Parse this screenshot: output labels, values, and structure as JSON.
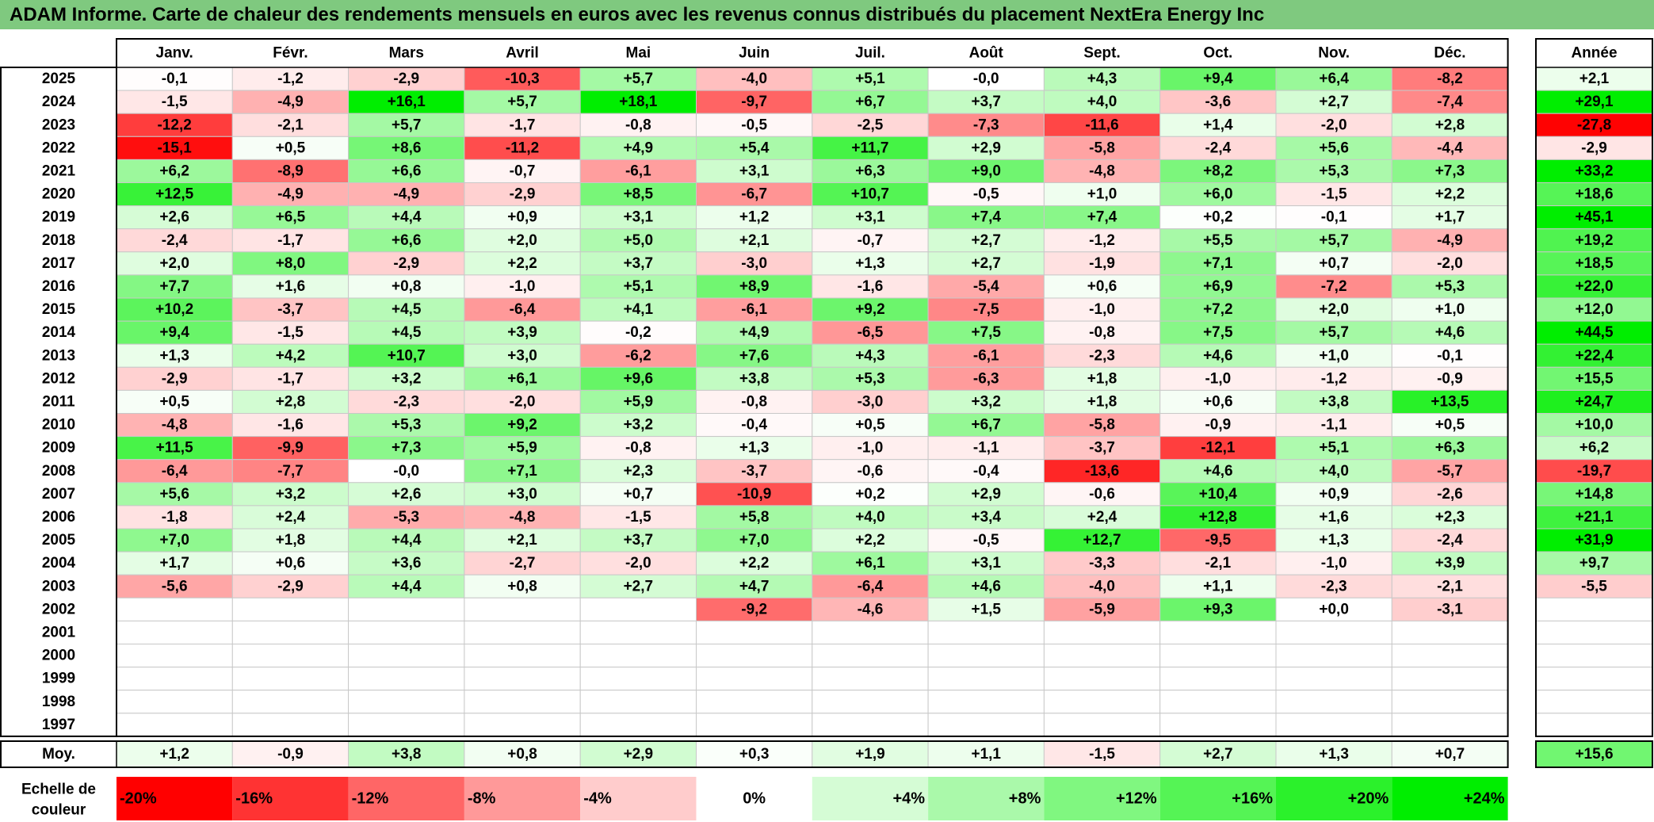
{
  "title": "ADAM Informe. Carte de chaleur des rendements mensuels en euros avec les revenus connus distribués du placement NextEra Energy Inc",
  "chart_data": {
    "type": "heatmap",
    "title": "ADAM Informe. Carte de chaleur des rendements mensuels en euros avec les revenus connus distribués du placement NextEra Energy Inc",
    "months": [
      "Janv.",
      "Févr.",
      "Mars",
      "Avril",
      "Mai",
      "Juin",
      "Juil.",
      "Août",
      "Sept.",
      "Oct.",
      "Nov.",
      "Déc."
    ],
    "year_header": "Année",
    "rows": [
      {
        "year": "2025",
        "values": [
          "-0,1",
          "-1,2",
          "-2,9",
          "-10,3",
          "+5,7",
          "-4,0",
          "+5,1",
          "-0,0",
          "+4,3",
          "+9,4",
          "+6,4",
          "-8,2"
        ],
        "annual": "+2,1"
      },
      {
        "year": "2024",
        "values": [
          "-1,5",
          "-4,9",
          "+16,1",
          "+5,7",
          "+18,1",
          "-9,7",
          "+6,7",
          "+3,7",
          "+4,0",
          "-3,6",
          "+2,7",
          "-7,4"
        ],
        "annual": "+29,1"
      },
      {
        "year": "2023",
        "values": [
          "-12,2",
          "-2,1",
          "+5,7",
          "-1,7",
          "-0,8",
          "-0,5",
          "-2,5",
          "-7,3",
          "-11,6",
          "+1,4",
          "-2,0",
          "+2,8"
        ],
        "annual": "-27,8"
      },
      {
        "year": "2022",
        "values": [
          "-15,1",
          "+0,5",
          "+8,6",
          "-11,2",
          "+4,9",
          "+5,4",
          "+11,7",
          "+2,9",
          "-5,8",
          "-2,4",
          "+5,6",
          "-4,4"
        ],
        "annual": "-2,9"
      },
      {
        "year": "2021",
        "values": [
          "+6,2",
          "-8,9",
          "+6,6",
          "-0,7",
          "-6,1",
          "+3,1",
          "+6,3",
          "+9,0",
          "-4,8",
          "+8,2",
          "+5,3",
          "+7,3"
        ],
        "annual": "+33,2"
      },
      {
        "year": "2020",
        "values": [
          "+12,5",
          "-4,9",
          "-4,9",
          "-2,9",
          "+8,5",
          "-6,7",
          "+10,7",
          "-0,5",
          "+1,0",
          "+6,0",
          "-1,5",
          "+2,2"
        ],
        "annual": "+18,6"
      },
      {
        "year": "2019",
        "values": [
          "+2,6",
          "+6,5",
          "+4,4",
          "+0,9",
          "+3,1",
          "+1,2",
          "+3,1",
          "+7,4",
          "+7,4",
          "+0,2",
          "-0,1",
          "+1,7"
        ],
        "annual": "+45,1"
      },
      {
        "year": "2018",
        "values": [
          "-2,4",
          "-1,7",
          "+6,6",
          "+2,0",
          "+5,0",
          "+2,1",
          "-0,7",
          "+2,7",
          "-1,2",
          "+5,5",
          "+5,7",
          "-4,9"
        ],
        "annual": "+19,2"
      },
      {
        "year": "2017",
        "values": [
          "+2,0",
          "+8,0",
          "-2,9",
          "+2,2",
          "+3,7",
          "-3,0",
          "+1,3",
          "+2,7",
          "-1,9",
          "+7,1",
          "+0,7",
          "-2,0"
        ],
        "annual": "+18,5"
      },
      {
        "year": "2016",
        "values": [
          "+7,7",
          "+1,6",
          "+0,8",
          "-1,0",
          "+5,1",
          "+8,9",
          "-1,6",
          "-5,4",
          "+0,6",
          "+6,9",
          "-7,2",
          "+5,3"
        ],
        "annual": "+22,0"
      },
      {
        "year": "2015",
        "values": [
          "+10,2",
          "-3,7",
          "+4,5",
          "-6,4",
          "+4,1",
          "-6,1",
          "+9,2",
          "-7,5",
          "-1,0",
          "+7,2",
          "+2,0",
          "+1,0"
        ],
        "annual": "+12,0"
      },
      {
        "year": "2014",
        "values": [
          "+9,4",
          "-1,5",
          "+4,5",
          "+3,9",
          "-0,2",
          "+4,9",
          "-6,5",
          "+7,5",
          "-0,8",
          "+7,5",
          "+5,7",
          "+4,6"
        ],
        "annual": "+44,5"
      },
      {
        "year": "2013",
        "values": [
          "+1,3",
          "+4,2",
          "+10,7",
          "+3,0",
          "-6,2",
          "+7,6",
          "+4,3",
          "-6,1",
          "-2,3",
          "+4,6",
          "+1,0",
          "-0,1"
        ],
        "annual": "+22,4"
      },
      {
        "year": "2012",
        "values": [
          "-2,9",
          "-1,7",
          "+3,2",
          "+6,1",
          "+9,6",
          "+3,8",
          "+5,3",
          "-6,3",
          "+1,8",
          "-1,0",
          "-1,2",
          "-0,9"
        ],
        "annual": "+15,5"
      },
      {
        "year": "2011",
        "values": [
          "+0,5",
          "+2,8",
          "-2,3",
          "-2,0",
          "+5,9",
          "-0,8",
          "-3,0",
          "+3,2",
          "+1,8",
          "+0,6",
          "+3,8",
          "+13,5"
        ],
        "annual": "+24,7"
      },
      {
        "year": "2010",
        "values": [
          "-4,8",
          "-1,6",
          "+5,3",
          "+9,2",
          "+3,2",
          "-0,4",
          "+0,5",
          "+6,7",
          "-5,8",
          "-0,9",
          "-1,1",
          "+0,5"
        ],
        "annual": "+10,0"
      },
      {
        "year": "2009",
        "values": [
          "+11,5",
          "-9,9",
          "+7,3",
          "+5,9",
          "-0,8",
          "+1,3",
          "-1,0",
          "-1,1",
          "-3,7",
          "-12,1",
          "+5,1",
          "+6,3"
        ],
        "annual": "+6,2"
      },
      {
        "year": "2008",
        "values": [
          "-6,4",
          "-7,7",
          "-0,0",
          "+7,1",
          "+2,3",
          "-3,7",
          "-0,6",
          "-0,4",
          "-13,6",
          "+4,6",
          "+4,0",
          "-5,7"
        ],
        "annual": "-19,7"
      },
      {
        "year": "2007",
        "values": [
          "+5,6",
          "+3,2",
          "+2,6",
          "+3,0",
          "+0,7",
          "-10,9",
          "+0,2",
          "+2,9",
          "-0,6",
          "+10,4",
          "+0,9",
          "-2,6"
        ],
        "annual": "+14,8"
      },
      {
        "year": "2006",
        "values": [
          "-1,8",
          "+2,4",
          "-5,3",
          "-4,8",
          "-1,5",
          "+5,8",
          "+4,0",
          "+3,4",
          "+2,4",
          "+12,8",
          "+1,6",
          "+2,3"
        ],
        "annual": "+21,1"
      },
      {
        "year": "2005",
        "values": [
          "+7,0",
          "+1,8",
          "+4,4",
          "+2,1",
          "+3,7",
          "+7,0",
          "+2,2",
          "-0,5",
          "+12,7",
          "-9,5",
          "+1,3",
          "-2,4"
        ],
        "annual": "+31,9"
      },
      {
        "year": "2004",
        "values": [
          "+1,7",
          "+0,6",
          "+3,6",
          "-2,7",
          "-2,0",
          "+2,2",
          "+6,1",
          "+3,1",
          "-3,3",
          "-2,1",
          "-1,0",
          "+3,9"
        ],
        "annual": "+9,7"
      },
      {
        "year": "2003",
        "values": [
          "-5,6",
          "-2,9",
          "+4,4",
          "+0,8",
          "+2,7",
          "+4,7",
          "-6,4",
          "+4,6",
          "-4,0",
          "+1,1",
          "-2,3",
          "-2,1"
        ],
        "annual": "-5,5"
      },
      {
        "year": "2002",
        "values": [
          "",
          "",
          "",
          "",
          "",
          "-9,2",
          "-4,6",
          "+1,5",
          "-5,9",
          "+9,3",
          "+0,0",
          "-3,1"
        ],
        "annual": ""
      },
      {
        "year": "2001",
        "values": [
          "",
          "",
          "",
          "",
          "",
          "",
          "",
          "",
          "",
          "",
          "",
          ""
        ],
        "annual": ""
      },
      {
        "year": "2000",
        "values": [
          "",
          "",
          "",
          "",
          "",
          "",
          "",
          "",
          "",
          "",
          "",
          ""
        ],
        "annual": ""
      },
      {
        "year": "1999",
        "values": [
          "",
          "",
          "",
          "",
          "",
          "",
          "",
          "",
          "",
          "",
          "",
          ""
        ],
        "annual": ""
      },
      {
        "year": "1998",
        "values": [
          "",
          "",
          "",
          "",
          "",
          "",
          "",
          "",
          "",
          "",
          "",
          ""
        ],
        "annual": ""
      },
      {
        "year": "1997",
        "values": [
          "",
          "",
          "",
          "",
          "",
          "",
          "",
          "",
          "",
          "",
          "",
          ""
        ],
        "annual": ""
      }
    ],
    "average": {
      "label": "Moy.",
      "values": [
        "+1,2",
        "-0,9",
        "+3,8",
        "+0,8",
        "+2,9",
        "+0,3",
        "+1,9",
        "+1,1",
        "-1,5",
        "+2,7",
        "+1,3",
        "+0,7"
      ],
      "annual": "+15,6"
    },
    "color_scale": {
      "label_line1": "Echelle de",
      "label_line2": "couleur",
      "steps": [
        {
          "label": "-20%",
          "value": -20
        },
        {
          "label": "-16%",
          "value": -16
        },
        {
          "label": "-12%",
          "value": -12
        },
        {
          "label": "-8%",
          "value": -8
        },
        {
          "label": "-4%",
          "value": -4
        },
        {
          "label": "0%",
          "value": 0
        },
        {
          "label": "+4%",
          "value": 4
        },
        {
          "label": "+8%",
          "value": 8
        },
        {
          "label": "+12%",
          "value": 12
        },
        {
          "label": "+16%",
          "value": 16
        },
        {
          "label": "+20%",
          "value": 20
        },
        {
          "label": "+24%",
          "value": 24
        }
      ]
    },
    "colors": {
      "negative_max": "#ff0000",
      "neutral": "#ffffff",
      "positive_max": "#00ee00",
      "title_bar": "#7fc97f"
    }
  }
}
